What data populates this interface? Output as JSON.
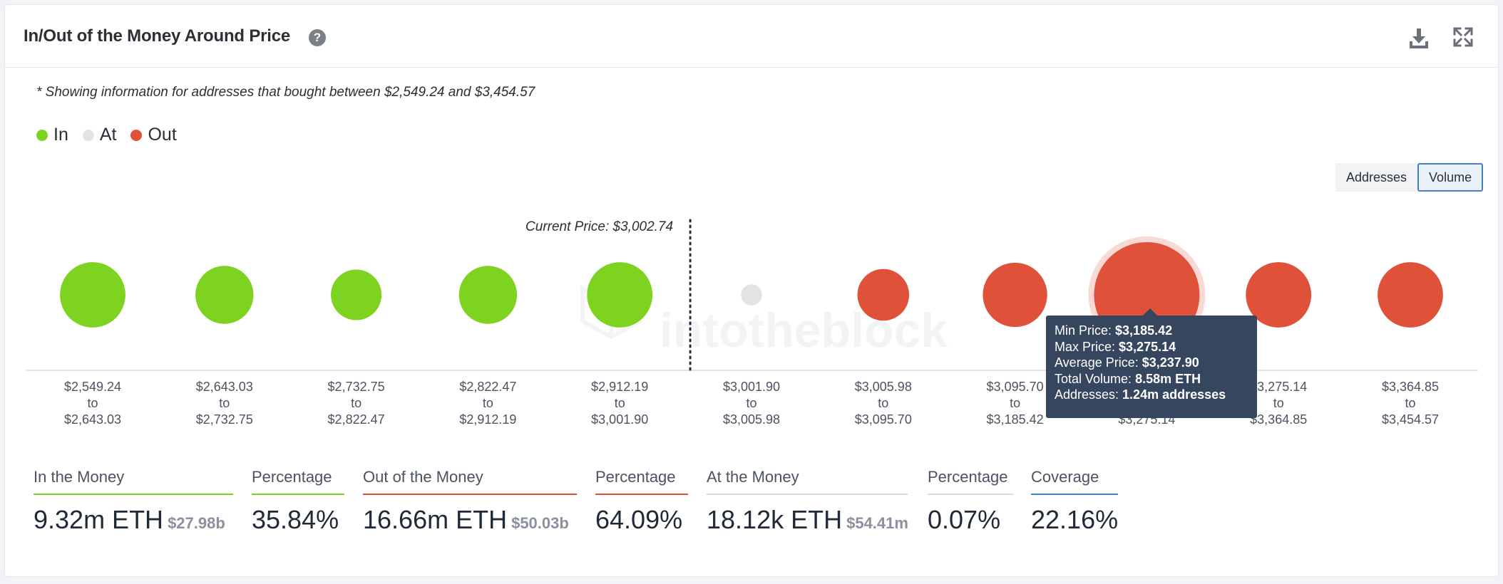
{
  "header": {
    "title": "In/Out of the Money Around Price",
    "help_glyph": "?"
  },
  "note": "* Showing information for addresses that bought between $2,549.24 and $3,454.57",
  "legend": [
    {
      "label": "In",
      "color": "#7ed321"
    },
    {
      "label": "At",
      "color": "#e3e3e3"
    },
    {
      "label": "Out",
      "color": "#e0513a"
    }
  ],
  "toggle": {
    "addresses_label": "Addresses",
    "volume_label": "Volume",
    "active": "Volume"
  },
  "watermark": "intotheblock",
  "tooltip": {
    "rows": [
      {
        "label": "Min Price: ",
        "value": "$3,185.42"
      },
      {
        "label": "Max Price: ",
        "value": "$3,275.14"
      },
      {
        "label": "Average Price: ",
        "value": "$3,237.90"
      },
      {
        "label": "Total Volume: ",
        "value": "8.58m ETH"
      },
      {
        "label": "Addresses: ",
        "value": "1.24m addresses"
      }
    ]
  },
  "chart_data": {
    "type": "bubble",
    "current_price_label": "Current Price: $3,002.74",
    "current_price_after_index": 4,
    "highlighted_index": 8,
    "colors": {
      "in": "#7ed321",
      "at": "#e3e3e3",
      "out": "#e0513a"
    },
    "ranges": [
      {
        "from": "$2,549.24",
        "to": "$2,643.03",
        "status": "in",
        "size": 0.62
      },
      {
        "from": "$2,643.03",
        "to": "$2,732.75",
        "status": "in",
        "size": 0.55
      },
      {
        "from": "$2,732.75",
        "to": "$2,822.47",
        "status": "in",
        "size": 0.48
      },
      {
        "from": "$2,822.47",
        "to": "$2,912.19",
        "status": "in",
        "size": 0.55
      },
      {
        "from": "$2,912.19",
        "to": "$3,001.90",
        "status": "in",
        "size": 0.62
      },
      {
        "from": "$3,001.90",
        "to": "$3,005.98",
        "status": "at",
        "size": 0.2
      },
      {
        "from": "$3,005.98",
        "to": "$3,095.70",
        "status": "out",
        "size": 0.49
      },
      {
        "from": "$3,095.70",
        "to": "$3,185.42",
        "status": "out",
        "size": 0.61
      },
      {
        "from": "$3,185.42",
        "to": "$3,275.14",
        "status": "out",
        "size": 1.0
      },
      {
        "from": "$3,275.14",
        "to": "$3,364.85",
        "status": "out",
        "size": 0.62
      },
      {
        "from": "$3,364.85",
        "to": "$3,454.57",
        "status": "out",
        "size": 0.62
      }
    ],
    "to_word": "to"
  },
  "stats": [
    {
      "label": "In the Money",
      "value": "9.32m ETH",
      "sub": "$27.98b",
      "color": "#7ed321"
    },
    {
      "label": "Percentage",
      "value": "35.84%",
      "sub": "",
      "color": "#7ed321"
    },
    {
      "label": "Out of the Money",
      "value": "16.66m ETH",
      "sub": "$50.03b",
      "color": "#e0513a"
    },
    {
      "label": "Percentage",
      "value": "64.09%",
      "sub": "",
      "color": "#e0513a"
    },
    {
      "label": "At the Money",
      "value": "18.12k ETH",
      "sub": "$54.41m",
      "color": "#d9d9d9"
    },
    {
      "label": "Percentage",
      "value": "0.07%",
      "sub": "",
      "color": "#d9d9d9"
    },
    {
      "label": "Coverage",
      "value": "22.16%",
      "sub": "",
      "color": "#3b82d6"
    }
  ]
}
